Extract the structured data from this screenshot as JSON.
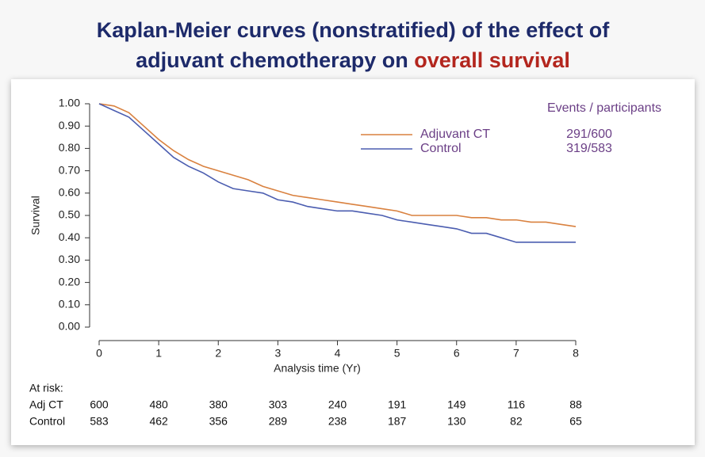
{
  "chart_data": {
    "type": "line",
    "title": {
      "line1": "Kaplan-Meier curves (nonstratified) of the effect of",
      "line2": "adjuvant chemotherapy on",
      "highlight": "overall survival"
    },
    "xlabel": "Analysis time (Yr)",
    "ylabel": "Survival",
    "x": [
      0,
      0.25,
      0.5,
      0.75,
      1,
      1.25,
      1.5,
      1.75,
      2,
      2.25,
      2.5,
      2.75,
      3,
      3.25,
      3.5,
      3.75,
      4,
      4.25,
      4.5,
      4.75,
      5,
      5.25,
      5.5,
      5.75,
      6,
      6.25,
      6.5,
      6.75,
      7,
      7.25,
      7.5,
      7.75,
      8
    ],
    "series": [
      {
        "name": "Adjuvant CT",
        "color": "#d9813f",
        "events": "291/600",
        "values": [
          1.0,
          0.99,
          0.96,
          0.9,
          0.84,
          0.79,
          0.75,
          0.72,
          0.7,
          0.68,
          0.66,
          0.63,
          0.61,
          0.59,
          0.58,
          0.57,
          0.56,
          0.55,
          0.54,
          0.53,
          0.52,
          0.5,
          0.5,
          0.5,
          0.5,
          0.49,
          0.49,
          0.48,
          0.48,
          0.47,
          0.47,
          0.46,
          0.45
        ]
      },
      {
        "name": "Control",
        "color": "#4b5db0",
        "events": "319/583",
        "values": [
          1.0,
          0.97,
          0.94,
          0.88,
          0.82,
          0.76,
          0.72,
          0.69,
          0.65,
          0.62,
          0.61,
          0.6,
          0.57,
          0.56,
          0.54,
          0.53,
          0.52,
          0.52,
          0.51,
          0.5,
          0.48,
          0.47,
          0.46,
          0.45,
          0.44,
          0.42,
          0.42,
          0.4,
          0.38,
          0.38,
          0.38,
          0.38,
          0.38
        ]
      }
    ],
    "legend_header": "Events / participants",
    "xlim": [
      0,
      8
    ],
    "xticks": [
      0,
      1,
      2,
      3,
      4,
      5,
      6,
      7,
      8
    ],
    "ylim": [
      0,
      1
    ],
    "yticks": [
      {
        "value": 0,
        "label": "0.00"
      },
      {
        "value": 0.1,
        "label": "0.10"
      },
      {
        "value": 0.2,
        "label": "0.20"
      },
      {
        "value": 0.3,
        "label": "0.30"
      },
      {
        "value": 0.4,
        "label": "0.40"
      },
      {
        "value": 0.5,
        "label": "0.50"
      },
      {
        "value": 0.6,
        "label": "0.60"
      },
      {
        "value": 0.7,
        "label": "0.70"
      },
      {
        "value": 0.8,
        "label": "0.80"
      },
      {
        "value": 0.9,
        "label": "0.90"
      },
      {
        "value": 1,
        "label": "1.00"
      }
    ],
    "at_risk": {
      "label": "At risk:",
      "rows": [
        {
          "name": "Adj CT",
          "values": [
            600,
            480,
            380,
            303,
            240,
            191,
            149,
            116,
            88
          ]
        },
        {
          "name": "Control",
          "values": [
            583,
            462,
            356,
            289,
            238,
            187,
            130,
            82,
            65
          ]
        }
      ]
    }
  }
}
